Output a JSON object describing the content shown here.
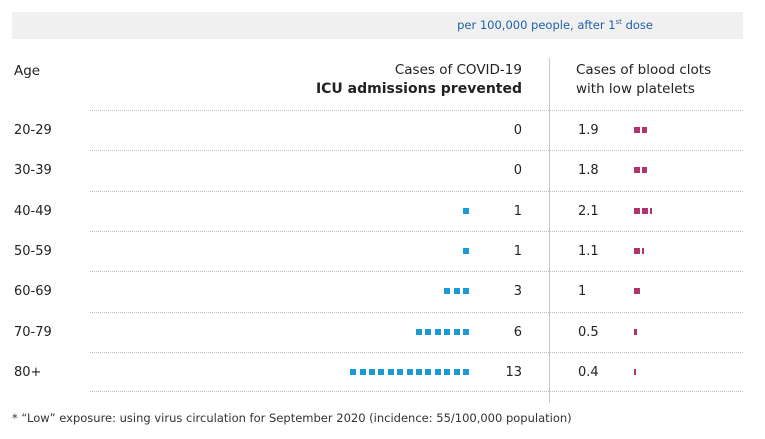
{
  "header": {
    "banner_prefix": "per 100,000 people, after 1",
    "banner_sup": "st",
    "banner_suffix": " dose",
    "age_label": "Age",
    "covid_line1": "Cases of COVID-19",
    "covid_line2": "ICU admissions prevented",
    "clot_line1": "Cases of blood clots",
    "clot_line2": "with low platelets"
  },
  "chart_data": {
    "type": "table",
    "categories": [
      "20-29",
      "30-39",
      "40-49",
      "50-59",
      "60-69",
      "70-79",
      "80+"
    ],
    "series": [
      {
        "name": "Cases of COVID-19 ICU admissions prevented",
        "values": [
          0,
          0,
          1,
          1,
          3,
          6,
          13
        ],
        "color": "#1b9ad6"
      },
      {
        "name": "Cases of blood clots with low platelets",
        "values": [
          1.9,
          1.8,
          2.1,
          1.1,
          1,
          0.5,
          0.4
        ],
        "color": "#b0336b"
      }
    ],
    "covid_labels": [
      "0",
      "0",
      "1",
      "1",
      "3",
      "6",
      "13"
    ],
    "clot_labels": [
      "1.9",
      "1.8",
      "2.1",
      "1.1",
      "1",
      "0.5",
      "0.4"
    ]
  },
  "footnote": "* “Low” exposure: using virus circulation for September 2020 (incidence: 55/100,000 population)"
}
